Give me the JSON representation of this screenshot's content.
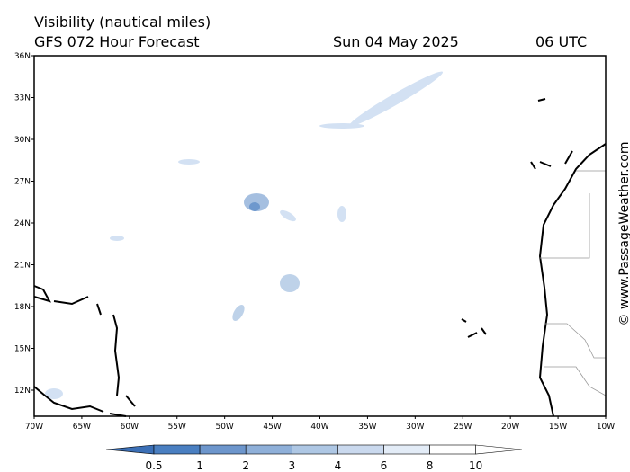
{
  "header": {
    "title": "Visibility (nautical miles)",
    "subtitle": "GFS 072 Hour Forecast",
    "date": "Sun 04 May 2025",
    "time": "06 UTC"
  },
  "map": {
    "lat_labels": [
      "36N",
      "33N",
      "30N",
      "27N",
      "24N",
      "21N",
      "18N",
      "15N",
      "12N"
    ],
    "lon_labels": [
      "70W",
      "65W",
      "60W",
      "55W",
      "50W",
      "45W",
      "40W",
      "35W",
      "30W",
      "25W",
      "20W",
      "15W",
      "10W"
    ]
  },
  "colorbar": {
    "labels": [
      0.5,
      1,
      2,
      3,
      4,
      6,
      8,
      10
    ]
  },
  "credit": "© www.PassageWeather.com"
}
